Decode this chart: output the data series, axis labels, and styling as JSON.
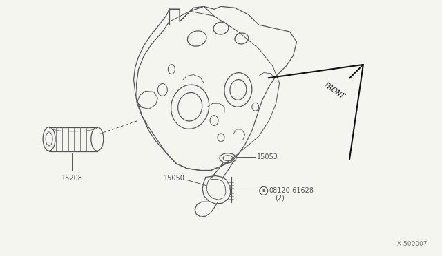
{
  "background_color": "#f5f5f0",
  "line_color": "#555555",
  "diagram_id": "X 500007",
  "front_label": "FRONT",
  "label_15208": "15208",
  "label_15050": "15050",
  "label_15053": "15053",
  "label_bolt": "08120-61628",
  "label_bolt2": "(2)"
}
